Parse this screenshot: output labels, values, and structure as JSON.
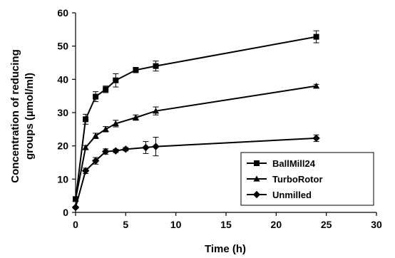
{
  "chart_data": {
    "type": "line",
    "xlabel": "Time (h)",
    "ylabel": "Concentration of reducing groups (µmol/ml)",
    "ylabel_lines": [
      "Concentration of reducing",
      "groups (µmol/ml)"
    ],
    "xlim": [
      0,
      30
    ],
    "ylim": [
      0,
      60
    ],
    "xticks": [
      0,
      5,
      10,
      15,
      20,
      25,
      30
    ],
    "yticks": [
      0,
      10,
      20,
      30,
      40,
      50,
      60
    ],
    "grid": false,
    "legend_position": "bottom-right",
    "series": [
      {
        "name": "BallMill24",
        "marker": "square",
        "x": [
          0,
          1,
          2,
          3,
          4,
          6,
          8,
          24
        ],
        "y": [
          4,
          28,
          34.8,
          37,
          39.7,
          42.8,
          44,
          52.8
        ],
        "yerr": [
          0.5,
          1.5,
          1.5,
          1.0,
          2.0,
          0.8,
          1.5,
          1.8
        ]
      },
      {
        "name": "TurboRotor",
        "marker": "triangle",
        "x": [
          0,
          1,
          2,
          3,
          4,
          6,
          8,
          24
        ],
        "y": [
          4,
          19.5,
          23,
          25,
          26.7,
          28.5,
          30.5,
          38
        ],
        "yerr": [
          0.5,
          0.6,
          0.8,
          0.8,
          1.0,
          0.8,
          1.2,
          0.5
        ]
      },
      {
        "name": "Unmilled",
        "marker": "diamond",
        "x": [
          0,
          1,
          2,
          3,
          4,
          5,
          7,
          8,
          24
        ],
        "y": [
          1.5,
          12.5,
          15.5,
          18.3,
          18.5,
          19,
          19.5,
          19.8,
          22.3
        ],
        "yerr": [
          0.3,
          0.8,
          1.0,
          0.8,
          0.5,
          0.5,
          1.8,
          2.8,
          1.0
        ]
      }
    ]
  }
}
